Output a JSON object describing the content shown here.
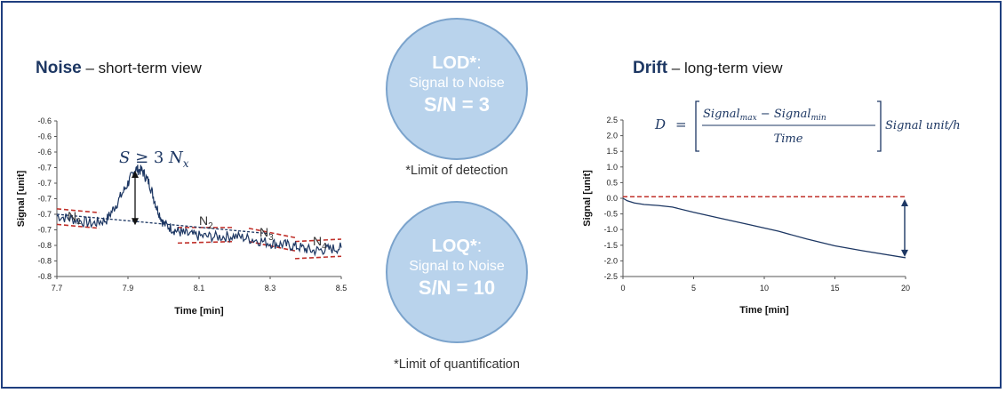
{
  "left_panel": {
    "title_bold": "Noise",
    "title_rest": " – short-term view"
  },
  "right_panel": {
    "title_bold": "Drift",
    "title_rest": " – long-term view"
  },
  "lod": {
    "title": "LOD*",
    "colon": ":",
    "subtitle": "Signal to Noise",
    "value": "S/N = 3",
    "caption": "*Limit of detection"
  },
  "loq": {
    "title": "LOQ*",
    "colon": ":",
    "subtitle": "Signal to Noise",
    "value": "S/N = 10",
    "caption": "*Limit of quantification"
  },
  "chart_data": [
    {
      "type": "line",
      "xlabel": "Time [min]",
      "ylabel": "Signal [unit]",
      "xlim": [
        7.7,
        8.5
      ],
      "ylim": [
        -0.8,
        -0.6
      ],
      "x_ticks": [
        "7.7",
        "7.9",
        "8.1",
        "8.3",
        "8.5"
      ],
      "y_ticks": [
        "-0.6",
        "-0.6",
        "-0.6",
        "-0.7",
        "-0.7",
        "-0.7",
        "-0.7",
        "-0.7",
        "-0.8",
        "-0.8",
        "-0.8"
      ],
      "annotation": {
        "S": "S",
        "geq": " ≥ 3 ",
        "N": "N",
        "sub": "x"
      },
      "noise_labels": [
        {
          "N": "N",
          "sub": "1",
          "x": 7.73
        },
        {
          "N": "N",
          "sub": "2",
          "x": 8.1
        },
        {
          "N": "N",
          "sub": "3",
          "x": 8.27
        },
        {
          "N": "N",
          "sub": "4",
          "x": 8.42
        }
      ],
      "series": [
        {
          "x": [
            7.7,
            7.75,
            7.8,
            7.84,
            7.87,
            7.9,
            7.92,
            7.94,
            7.96,
            7.98,
            8.0,
            8.03,
            8.06,
            8.1,
            8.15,
            8.2,
            8.25,
            8.3,
            8.34,
            8.38,
            8.42,
            8.46,
            8.5
          ],
          "y": [
            -0.722,
            -0.727,
            -0.732,
            -0.727,
            -0.705,
            -0.68,
            -0.662,
            -0.664,
            -0.68,
            -0.71,
            -0.732,
            -0.74,
            -0.745,
            -0.748,
            -0.749,
            -0.748,
            -0.752,
            -0.757,
            -0.759,
            -0.762,
            -0.767,
            -0.765,
            -0.763
          ],
          "color": "#1d3763"
        }
      ],
      "baseline": {
        "x": [
          7.7,
          8.3
        ],
        "y": [
          -0.72,
          -0.745
        ],
        "color": "#1d3763"
      },
      "envelopes": [
        {
          "x": [
            7.7,
            7.82
          ],
          "upper": [
            -0.713,
            -0.718
          ],
          "lower": [
            -0.733,
            -0.738
          ]
        },
        {
          "x": [
            8.04,
            8.2
          ],
          "upper": [
            -0.737,
            -0.737
          ],
          "lower": [
            -0.757,
            -0.755
          ]
        },
        {
          "x": [
            8.24,
            8.37
          ],
          "upper": [
            -0.738,
            -0.75
          ],
          "lower": [
            -0.755,
            -0.767
          ]
        },
        {
          "x": [
            8.37,
            8.5
          ],
          "upper": [
            -0.755,
            -0.752
          ],
          "lower": [
            -0.777,
            -0.774
          ]
        }
      ],
      "envelope_color": "#c0302a"
    },
    {
      "type": "line",
      "xlabel": "Time [min]",
      "ylabel": "Signal [unit]",
      "xlim": [
        0,
        20
      ],
      "ylim": [
        -2.5,
        2.5
      ],
      "x_ticks": [
        "0",
        "5",
        "10",
        "15",
        "20"
      ],
      "y_ticks": [
        "2.5",
        "2.0",
        "1.5",
        "1.0",
        "0.5",
        "0.0",
        "-0.5",
        "-1.0",
        "-1.5",
        "-2.0",
        "-2.5"
      ],
      "formula": {
        "D": "D",
        "eq": "=",
        "signal": "Signal",
        "max": "max",
        "minus": "−",
        "min": "min",
        "time": "Time",
        "unit": "Signal unit/h"
      },
      "series": [
        {
          "x": [
            0,
            0.3,
            0.8,
            1.5,
            2.5,
            3.5,
            5,
            7,
            9,
            11,
            13,
            15,
            17,
            20
          ],
          "y": [
            0.0,
            -0.08,
            -0.15,
            -0.2,
            -0.23,
            -0.28,
            -0.45,
            -0.65,
            -0.85,
            -1.05,
            -1.3,
            -1.52,
            -1.68,
            -1.9
          ],
          "color": "#1d3763"
        }
      ],
      "reference_y": 0.05,
      "reference_color": "#c0302a",
      "drift_arrow": {
        "x": 20,
        "y_top": 0.0,
        "y_bottom": -1.9
      }
    }
  ]
}
